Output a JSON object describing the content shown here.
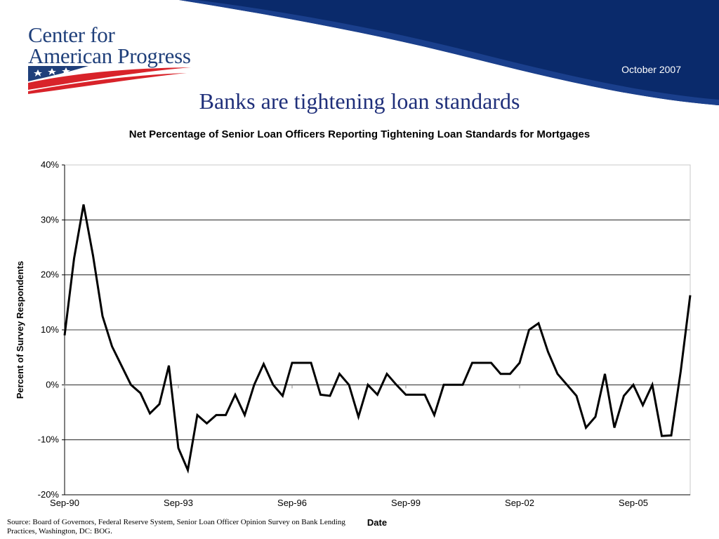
{
  "header": {
    "org_name_line1": "Center for",
    "org_name_line2": "American Progress",
    "date": "October 2007",
    "brand_colors": {
      "navy": "#0a2a6b",
      "red": "#d8232a",
      "text": "#1f3f7a"
    }
  },
  "slide_title": "Banks are tightening loan standards",
  "source": "Source: Board of Governors, Federal Reserve System, Senior Loan Officer Opinion Survey on Bank Lending Practices, Washington, DC: BOG.",
  "chart_data": {
    "type": "line",
    "title": "Net Percentage of Senior Loan Officers Reporting Tightening Loan Standards for Mortgages",
    "xlabel": "Date",
    "ylabel": "Percent of Survey Respondents",
    "ylim": [
      -20,
      40
    ],
    "yticks": [
      -20,
      -10,
      0,
      10,
      20,
      30,
      40
    ],
    "ytick_labels": [
      "-20%",
      "-10%",
      "0%",
      "10%",
      "20%",
      "30%",
      "40%"
    ],
    "xtick_labels": [
      "Sep-90",
      "Sep-93",
      "Sep-96",
      "Sep-99",
      "Sep-02",
      "Sep-05"
    ],
    "xtick_positions": [
      0,
      12,
      24,
      36,
      48,
      60
    ],
    "grid": "horizontal",
    "line_color": "#000000",
    "series": [
      {
        "values": [
          9,
          23,
          32.8,
          23.5,
          12.5,
          7,
          3.5,
          0,
          -1.5,
          -5.2,
          -3.5,
          3.5,
          -11.5,
          -15.5,
          -5.5,
          -7,
          -5.5,
          -5.5,
          -1.8,
          -5.5,
          0,
          3.8,
          0,
          -2,
          4,
          4,
          4,
          -1.8,
          -2,
          2,
          0,
          -5.8,
          0,
          -1.8,
          2,
          0,
          -1.8,
          -1.8,
          -1.8,
          -5.5,
          0,
          0,
          0,
          4,
          4,
          4,
          2,
          2,
          4,
          10,
          11.2,
          6,
          2,
          0,
          -2,
          -7.8,
          -5.8,
          2,
          -7.8,
          -2,
          0,
          -3.7,
          0,
          -9.3,
          -9.2,
          2.5,
          16.3
        ]
      }
    ]
  }
}
